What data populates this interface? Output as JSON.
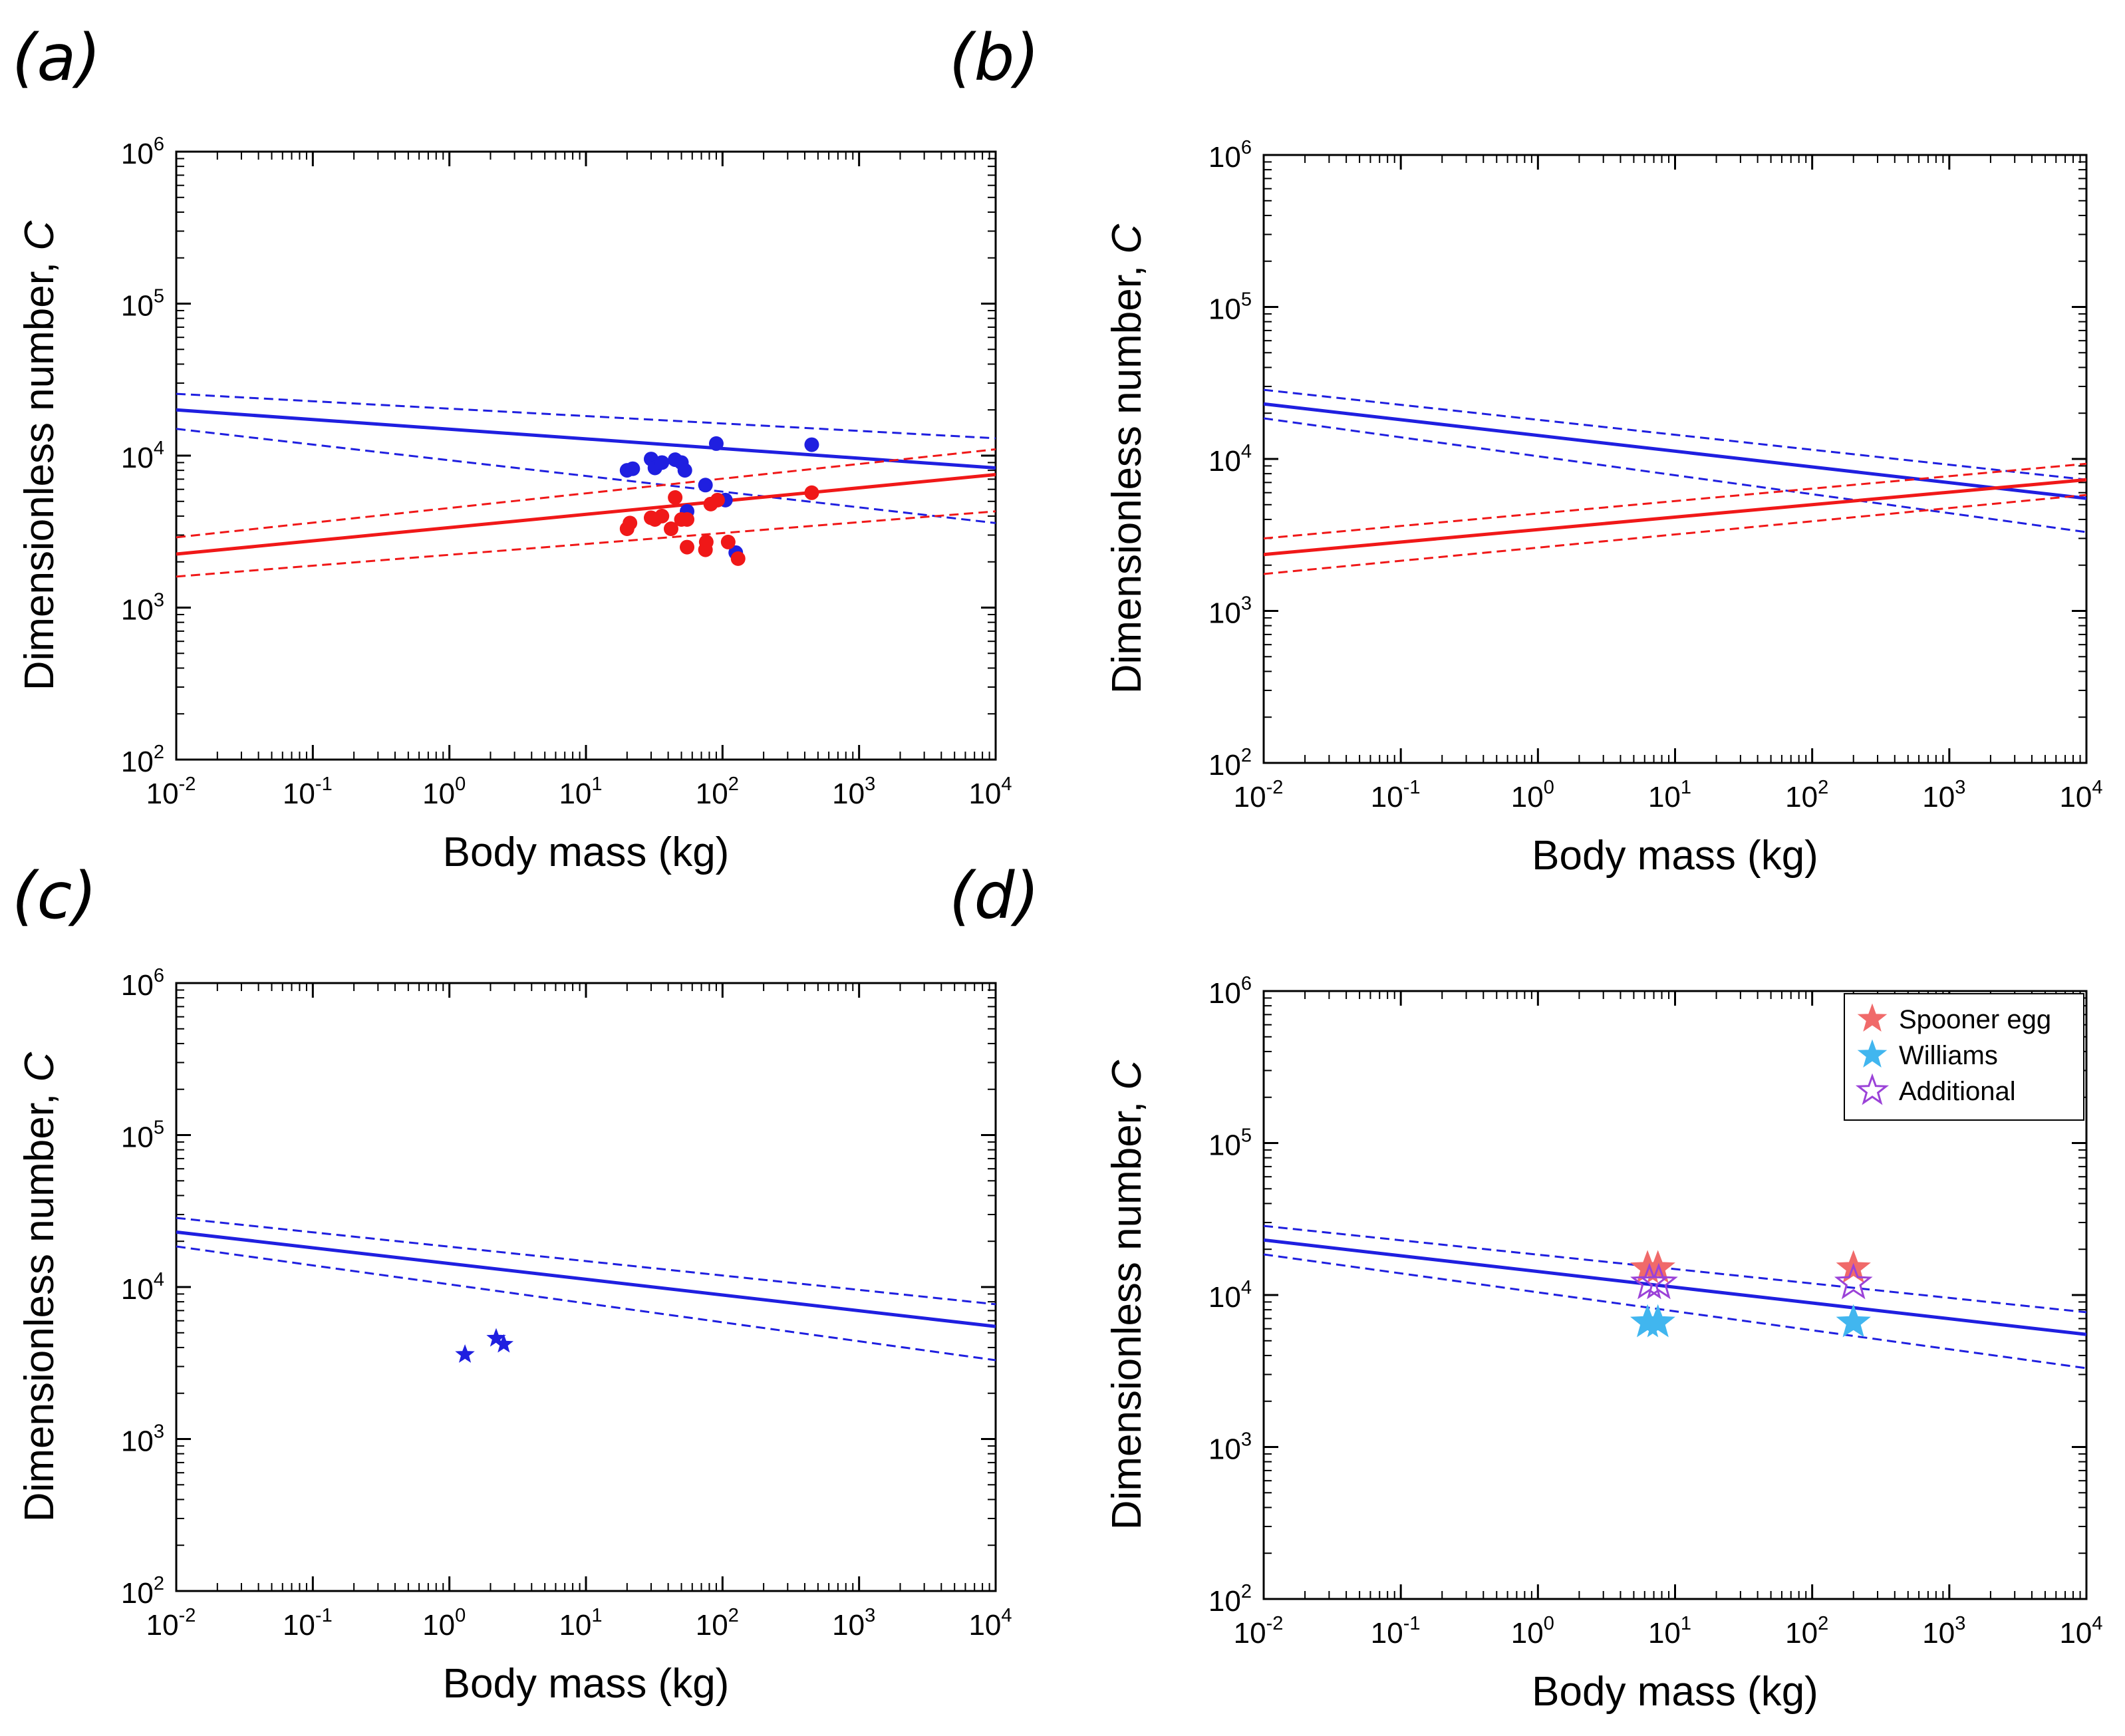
{
  "colors": {
    "blue": "#1f1fe0",
    "red": "#f01818",
    "spooner": "#f06a6a",
    "williams": "#41b6ef",
    "additional": "#9b42d8",
    "axis": "#000000"
  },
  "chart_data": [
    {
      "id": "a",
      "panel_label": "(a)",
      "type": "scatter",
      "xlabel": "Body mass (kg)",
      "ylabel_main": "Dimensionless number, ",
      "ylabel_var": "C",
      "xscale": "log",
      "yscale": "log",
      "xlim": [
        0.01,
        10000
      ],
      "ylim": [
        100,
        1000000
      ],
      "x_tick_base": "10",
      "x_tick_exps": [
        "-2",
        "-1",
        "0",
        "1",
        "2",
        "3",
        "4"
      ],
      "y_tick_base": "10",
      "y_tick_exps": [
        "2",
        "3",
        "4",
        "5",
        "6"
      ],
      "fits": [
        {
          "name": "blue fit",
          "color": "blue",
          "x": [
            0.01,
            10000
          ],
          "y": [
            20000,
            8300
          ]
        },
        {
          "name": "blue lower CI",
          "color": "blue",
          "dashed": true,
          "x": [
            0.01,
            10000
          ],
          "y": [
            15000,
            3600
          ]
        },
        {
          "name": "blue upper CI",
          "color": "blue",
          "dashed": true,
          "x": [
            0.01,
            10000
          ],
          "y": [
            25500,
            13000
          ]
        },
        {
          "name": "red fit",
          "color": "red",
          "x": [
            0.01,
            10000
          ],
          "y": [
            2250,
            7500
          ]
        },
        {
          "name": "red lower CI",
          "color": "red",
          "dashed": true,
          "x": [
            0.01,
            10000
          ],
          "y": [
            1600,
            4300
          ]
        },
        {
          "name": "red upper CI",
          "color": "red",
          "dashed": true,
          "x": [
            0.01,
            10000
          ],
          "y": [
            2900,
            11000
          ]
        }
      ],
      "series": [
        {
          "name": "blue points",
          "color": "blue",
          "marker": "circle",
          "x": [
            20,
            22,
            30,
            32,
            36,
            45,
            50,
            53,
            55,
            75,
            90,
            105,
            125,
            450
          ],
          "y": [
            8000,
            8200,
            9500,
            8300,
            9000,
            9400,
            9000,
            8000,
            4300,
            6400,
            12000,
            5100,
            2300,
            11800
          ]
        },
        {
          "name": "red points",
          "color": "red",
          "marker": "circle",
          "x": [
            20,
            21,
            30,
            32,
            36,
            42,
            45,
            50,
            55,
            55,
            75,
            76,
            82,
            92,
            110,
            130,
            450
          ],
          "y": [
            3300,
            3600,
            3900,
            3800,
            4000,
            3300,
            5300,
            3800,
            3800,
            2500,
            2400,
            2700,
            4800,
            5100,
            2700,
            2100,
            5700
          ]
        }
      ]
    },
    {
      "id": "b",
      "panel_label": "(b)",
      "type": "line",
      "xlabel": "Body mass (kg)",
      "ylabel_main": "Dimensionless number, ",
      "ylabel_var": "C",
      "xscale": "log",
      "yscale": "log",
      "xlim": [
        0.01,
        10000
      ],
      "ylim": [
        100,
        1000000
      ],
      "x_tick_base": "10",
      "x_tick_exps": [
        "-2",
        "-1",
        "0",
        "1",
        "2",
        "3",
        "4"
      ],
      "y_tick_base": "10",
      "y_tick_exps": [
        "2",
        "3",
        "4",
        "5",
        "6"
      ],
      "fits": [
        {
          "name": "blue fit",
          "color": "blue",
          "x": [
            0.01,
            10000
          ],
          "y": [
            23000,
            5500
          ]
        },
        {
          "name": "blue lower CI",
          "color": "blue",
          "dashed": true,
          "x": [
            0.01,
            10000
          ],
          "y": [
            18500,
            3300
          ]
        },
        {
          "name": "blue upper CI",
          "color": "blue",
          "dashed": true,
          "x": [
            0.01,
            10000
          ],
          "y": [
            28500,
            7300
          ]
        },
        {
          "name": "red fit",
          "color": "red",
          "x": [
            0.01,
            10000
          ],
          "y": [
            2350,
            7300
          ]
        },
        {
          "name": "red lower CI",
          "color": "red",
          "dashed": true,
          "x": [
            0.01,
            10000
          ],
          "y": [
            1750,
            5800
          ]
        },
        {
          "name": "red upper CI",
          "color": "red",
          "dashed": true,
          "x": [
            0.01,
            10000
          ],
          "y": [
            3000,
            9300
          ]
        }
      ],
      "series": []
    },
    {
      "id": "c",
      "panel_label": "(c)",
      "type": "scatter",
      "xlabel": "Body mass (kg)",
      "ylabel_main": "Dimensionless number, ",
      "ylabel_var": "C",
      "xscale": "log",
      "yscale": "log",
      "xlim": [
        0.01,
        10000
      ],
      "ylim": [
        100,
        1000000
      ],
      "x_tick_base": "10",
      "x_tick_exps": [
        "-2",
        "-1",
        "0",
        "1",
        "2",
        "3",
        "4"
      ],
      "y_tick_base": "10",
      "y_tick_exps": [
        "2",
        "3",
        "4",
        "5",
        "6"
      ],
      "fits": [
        {
          "name": "blue fit",
          "color": "blue",
          "x": [
            0.01,
            10000
          ],
          "y": [
            23000,
            5500
          ]
        },
        {
          "name": "blue lower CI",
          "color": "blue",
          "dashed": true,
          "x": [
            0.01,
            10000
          ],
          "y": [
            18500,
            3300
          ]
        },
        {
          "name": "blue upper CI",
          "color": "blue",
          "dashed": true,
          "x": [
            0.01,
            10000
          ],
          "y": [
            28500,
            7700
          ]
        }
      ],
      "series": [
        {
          "name": "blue stars",
          "color": "blue",
          "marker": "star-filled",
          "size": "small",
          "x": [
            1.3,
            2.2,
            2.5
          ],
          "y": [
            3600,
            4600,
            4200
          ]
        }
      ]
    },
    {
      "id": "d",
      "panel_label": "(d)",
      "type": "scatter",
      "xlabel": "Body mass (kg)",
      "ylabel_main": "Dimensionless number, ",
      "ylabel_var": "C",
      "xscale": "log",
      "yscale": "log",
      "xlim": [
        0.01,
        10000
      ],
      "ylim": [
        100,
        1000000
      ],
      "x_tick_base": "10",
      "x_tick_exps": [
        "-2",
        "-1",
        "0",
        "1",
        "2",
        "3",
        "4"
      ],
      "y_tick_base": "10",
      "y_tick_exps": [
        "2",
        "3",
        "4",
        "5",
        "6"
      ],
      "fits": [
        {
          "name": "blue fit",
          "color": "blue",
          "x": [
            0.01,
            10000
          ],
          "y": [
            23000,
            5500
          ]
        },
        {
          "name": "blue lower CI",
          "color": "blue",
          "dashed": true,
          "x": [
            0.01,
            10000
          ],
          "y": [
            18500,
            3300
          ]
        },
        {
          "name": "blue upper CI",
          "color": "blue",
          "dashed": true,
          "x": [
            0.01,
            10000
          ],
          "y": [
            28500,
            7700
          ]
        }
      ],
      "series": [
        {
          "name": "Spooner egg",
          "color": "spooner",
          "marker": "star-filled",
          "size": "large",
          "x": [
            6.3,
            7.5,
            200
          ],
          "y": [
            15000,
            15000,
            15000
          ]
        },
        {
          "name": "Williams",
          "color": "williams",
          "marker": "star-filled",
          "size": "large",
          "x": [
            6.3,
            7.5,
            200
          ],
          "y": [
            6600,
            6600,
            6600
          ]
        },
        {
          "name": "Additional",
          "color": "additional",
          "marker": "star-open",
          "size": "large",
          "x": [
            6.5,
            7.6,
            200
          ],
          "y": [
            12000,
            12000,
            12000
          ]
        }
      ],
      "legend": {
        "placement": "top-right",
        "entries": [
          {
            "label": "Spooner egg",
            "color": "spooner",
            "marker": "star-filled"
          },
          {
            "label": "Williams",
            "color": "williams",
            "marker": "star-filled"
          },
          {
            "label": "Additional",
            "color": "additional",
            "marker": "star-open"
          }
        ]
      }
    }
  ]
}
